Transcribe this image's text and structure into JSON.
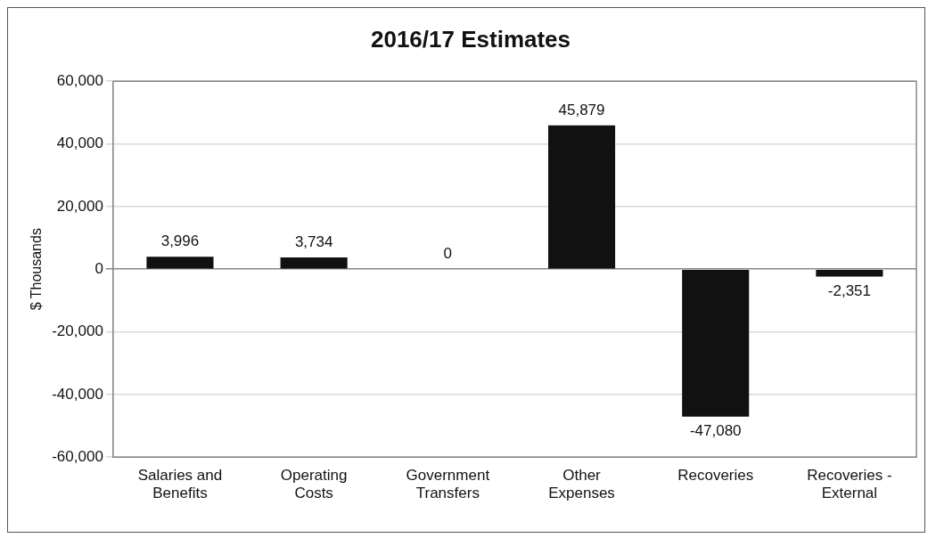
{
  "chart_data": {
    "type": "bar",
    "title": "2016/17 Estimates",
    "ylabel": "$ Thousands",
    "categories": [
      "Salaries and Benefits",
      "Operating Costs",
      "Government Transfers",
      "Other Expenses",
      "Recoveries",
      "Recoveries - External"
    ],
    "values": [
      3996,
      3734,
      0,
      45879,
      -47080,
      -2351
    ],
    "value_labels": [
      "3,996",
      "3,734",
      "0",
      "45,879",
      "-47,080",
      "-2,351"
    ],
    "color": "#111111",
    "ylim": [
      -60000,
      60000
    ],
    "yticks": [
      {
        "value": -60000,
        "label": "-60,000"
      },
      {
        "value": -40000,
        "label": "-40,000"
      },
      {
        "value": -20000,
        "label": "-20,000"
      },
      {
        "value": 0,
        "label": "0"
      },
      {
        "value": 20000,
        "label": "20,000"
      },
      {
        "value": 40000,
        "label": "40,000"
      },
      {
        "value": 60000,
        "label": "60,000"
      }
    ],
    "grid": "y",
    "legend": false
  }
}
